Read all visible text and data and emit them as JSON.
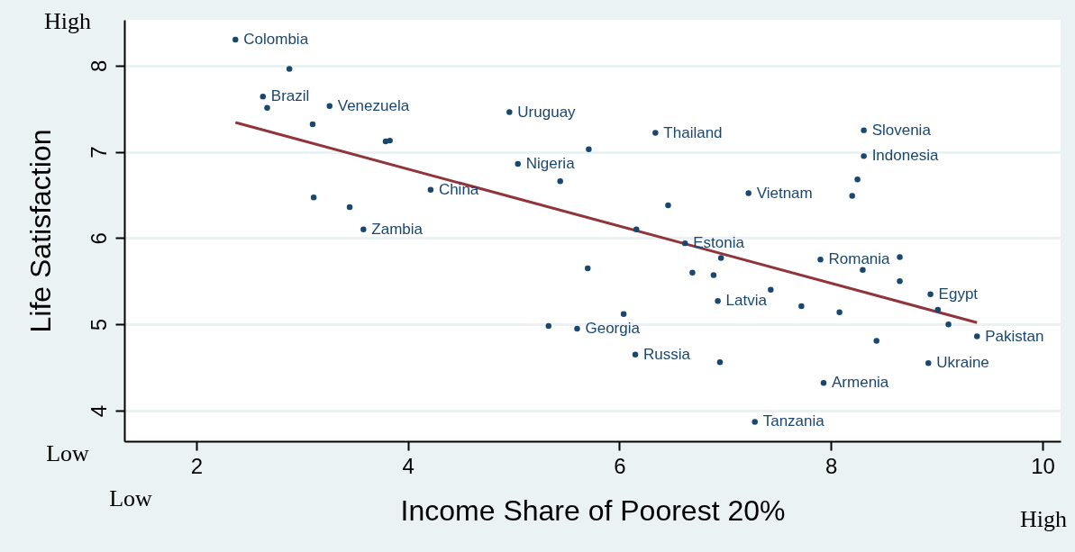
{
  "chart_data": {
    "type": "scatter",
    "xlabel": "Income Share of Poorest 20%",
    "ylabel": "Life Satisfaction",
    "xlim": [
      1.32,
      10.17
    ],
    "ylim": [
      3.645,
      8.53
    ],
    "xticks": [
      2,
      4,
      6,
      8,
      10
    ],
    "yticks": [
      4,
      5,
      6,
      7,
      8
    ],
    "grid": "y",
    "series": [
      {
        "type": "scatter",
        "marker": "circle",
        "color": "#1a476f",
        "x": [
          2.37,
          2.88,
          2.63,
          2.67,
          3.26,
          3.1,
          3.79,
          3.83,
          4.96,
          5.04,
          5.71,
          5.44,
          4.215,
          3.11,
          3.45,
          3.58,
          6.34,
          8.31,
          8.31,
          8.25,
          8.2,
          7.22,
          6.46,
          6.16,
          6.62,
          6.96,
          5.7,
          6.69,
          6.89,
          7.9,
          8.3,
          8.65,
          8.65,
          8.94,
          9.01,
          9.11,
          9.38,
          7.43,
          6.93,
          7.72,
          8.08,
          8.43,
          8.92,
          7.93,
          7.28,
          6.95,
          6.15,
          5.6,
          5.33,
          6.04
        ],
        "values": [
          8.3,
          7.96,
          7.64,
          7.51,
          7.53,
          7.32,
          7.12,
          7.13,
          7.46,
          6.86,
          7.03,
          6.66,
          6.56,
          6.47,
          6.36,
          6.1,
          7.22,
          7.25,
          6.95,
          6.68,
          6.49,
          6.52,
          6.38,
          6.1,
          5.94,
          5.77,
          5.65,
          5.6,
          5.57,
          5.75,
          5.63,
          5.78,
          5.5,
          5.35,
          5.17,
          5.0,
          4.86,
          5.4,
          5.27,
          5.21,
          5.14,
          4.81,
          4.55,
          4.32,
          3.87,
          4.56,
          4.65,
          4.95,
          4.98,
          5.12
        ]
      },
      {
        "type": "line",
        "color": "#90353b",
        "x": [
          2.37,
          9.38
        ],
        "values": [
          7.34,
          5.02
        ]
      }
    ],
    "annotations": [
      "High",
      "Low",
      "Low",
      "High",
      {
        "text": "Colombia",
        "x": 2.37,
        "y": 8.3
      },
      {
        "text": "Brazil",
        "x": 2.63,
        "y": 7.64
      },
      {
        "text": "Venezuela",
        "x": 3.26,
        "y": 7.53
      },
      {
        "text": "Uruguay",
        "x": 4.96,
        "y": 7.46
      },
      {
        "text": "Nigeria",
        "x": 5.04,
        "y": 6.86
      },
      {
        "text": "China",
        "x": 4.215,
        "y": 6.56
      },
      {
        "text": "Zambia",
        "x": 3.58,
        "y": 6.1
      },
      {
        "text": "Thailand",
        "x": 6.34,
        "y": 7.22
      },
      {
        "text": "Slovenia",
        "x": 8.31,
        "y": 7.25
      },
      {
        "text": "Indonesia",
        "x": 8.31,
        "y": 6.95
      },
      {
        "text": "Vietnam",
        "x": 7.22,
        "y": 6.52
      },
      {
        "text": "Estonia",
        "x": 6.62,
        "y": 5.94
      },
      {
        "text": "Romania",
        "x": 7.9,
        "y": 5.75
      },
      {
        "text": "Egypt",
        "x": 8.94,
        "y": 5.35
      },
      {
        "text": "Pakistan",
        "x": 9.38,
        "y": 4.86
      },
      {
        "text": "Latvia",
        "x": 6.93,
        "y": 5.27
      },
      {
        "text": "Ukraine",
        "x": 8.92,
        "y": 4.55
      },
      {
        "text": "Armenia",
        "x": 7.93,
        "y": 4.32
      },
      {
        "text": "Tanzania",
        "x": 7.28,
        "y": 3.87
      },
      {
        "text": "Russia",
        "x": 6.15,
        "y": 4.65
      },
      {
        "text": "Georgia",
        "x": 5.6,
        "y": 4.95
      }
    ]
  }
}
